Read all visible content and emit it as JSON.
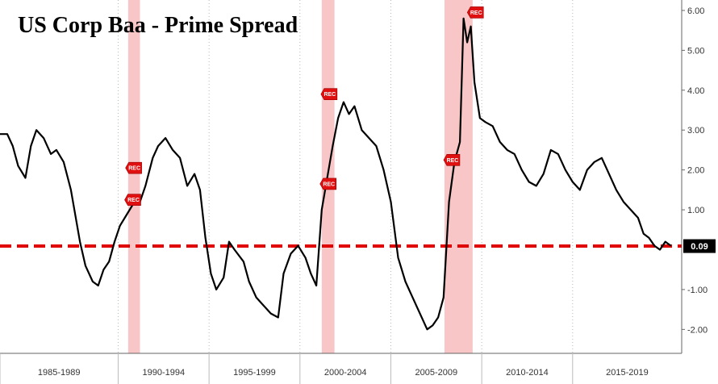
{
  "chart_data": {
    "type": "line",
    "title": "US Corp Baa - Prime Spread",
    "xlabel": "",
    "ylabel": "",
    "xlim": [
      1983.5,
      2021.0
    ],
    "ylim": [
      -2.6,
      6.1
    ],
    "y_ticks": [
      {
        "value": 6,
        "label": "6.00"
      },
      {
        "value": 5,
        "label": "5.00"
      },
      {
        "value": 4,
        "label": "4.00"
      },
      {
        "value": 3,
        "label": "3.00"
      },
      {
        "value": 2,
        "label": "2.00"
      },
      {
        "value": 1,
        "label": "1.00"
      },
      {
        "value": -1,
        "label": "-1.00"
      },
      {
        "value": -2,
        "label": "-2.00"
      }
    ],
    "x_period_labels": [
      {
        "start": 1983.5,
        "end": 1990.0,
        "label": "1985-1989"
      },
      {
        "start": 1990.0,
        "end": 1995.0,
        "label": "1990-1994"
      },
      {
        "start": 1995.0,
        "end": 2000.0,
        "label": "1995-1999"
      },
      {
        "start": 2000.0,
        "end": 2005.0,
        "label": "2000-2004"
      },
      {
        "start": 2005.0,
        "end": 2010.0,
        "label": "2005-2009"
      },
      {
        "start": 2010.0,
        "end": 2015.0,
        "label": "2010-2014"
      },
      {
        "start": 2015.0,
        "end": 2021.0,
        "label": "2015-2019"
      }
    ],
    "recessions": [
      {
        "start": 1990.55,
        "end": 1991.2
      },
      {
        "start": 2001.2,
        "end": 2001.9
      },
      {
        "start": 2007.95,
        "end": 2009.5
      }
    ],
    "rec_markers": [
      {
        "x": 1990.85,
        "y": 2.05,
        "label": "REC"
      },
      {
        "x": 1990.8,
        "y": 1.25,
        "label": "REC"
      },
      {
        "x": 2001.6,
        "y": 3.9,
        "label": "REC"
      },
      {
        "x": 2001.55,
        "y": 1.65,
        "label": "REC"
      },
      {
        "x": 2008.35,
        "y": 2.25,
        "label": "REC"
      },
      {
        "x": 2009.65,
        "y": 5.95,
        "label": "REC"
      }
    ],
    "reference_line": {
      "value": 0.09,
      "label": "0.09",
      "color": "#e00000"
    },
    "series": [
      {
        "name": "",
        "color": "#000000",
        "x": [
          1983.5,
          1983.9,
          1984.2,
          1984.5,
          1984.9,
          1985.2,
          1985.5,
          1985.9,
          1986.3,
          1986.6,
          1987.0,
          1987.4,
          1987.9,
          1988.2,
          1988.6,
          1988.9,
          1989.2,
          1989.5,
          1989.8,
          1990.1,
          1990.5,
          1990.9,
          1991.2,
          1991.5,
          1991.9,
          1992.2,
          1992.6,
          1993.0,
          1993.4,
          1993.8,
          1994.2,
          1994.5,
          1994.8,
          1995.1,
          1995.4,
          1995.8,
          1996.1,
          1996.4,
          1996.9,
          1997.2,
          1997.6,
          1998.0,
          1998.4,
          1998.8,
          1999.1,
          1999.5,
          1999.9,
          2000.3,
          2000.6,
          2000.9,
          2001.2,
          2001.5,
          2001.8,
          2002.1,
          2002.4,
          2002.7,
          2003.0,
          2003.4,
          2003.8,
          2004.2,
          2004.6,
          2005.0,
          2005.4,
          2005.8,
          2006.2,
          2006.6,
          2007.0,
          2007.3,
          2007.6,
          2007.9,
          2008.2,
          2008.5,
          2008.8,
          2009.0,
          2009.2,
          2009.4,
          2009.6,
          2009.9,
          2010.2,
          2010.6,
          2011.0,
          2011.4,
          2011.8,
          2012.2,
          2012.6,
          2013.0,
          2013.4,
          2013.8,
          2014.2,
          2014.6,
          2015.0,
          2015.4,
          2015.8,
          2016.2,
          2016.6,
          2017.0,
          2017.4,
          2017.8,
          2018.2,
          2018.6,
          2018.9,
          2019.2,
          2019.5,
          2019.8,
          2020.1,
          2020.4
        ],
        "values": [
          2.9,
          2.9,
          2.6,
          2.1,
          1.8,
          2.6,
          3.0,
          2.8,
          2.4,
          2.5,
          2.2,
          1.5,
          0.2,
          -0.4,
          -0.8,
          -0.9,
          -0.5,
          -0.3,
          0.2,
          0.6,
          0.9,
          1.2,
          1.2,
          1.6,
          2.3,
          2.6,
          2.8,
          2.5,
          2.3,
          1.6,
          1.9,
          1.5,
          0.3,
          -0.6,
          -1.0,
          -0.7,
          0.2,
          0.0,
          -0.3,
          -0.8,
          -1.2,
          -1.4,
          -1.6,
          -1.7,
          -0.6,
          -0.1,
          0.1,
          -0.2,
          -0.6,
          -0.9,
          1.0,
          1.8,
          2.6,
          3.3,
          3.7,
          3.4,
          3.6,
          3.0,
          2.8,
          2.6,
          2.0,
          1.2,
          -0.2,
          -0.8,
          -1.2,
          -1.6,
          -2.0,
          -1.9,
          -1.7,
          -1.2,
          1.2,
          2.2,
          2.7,
          5.8,
          5.2,
          5.6,
          4.2,
          3.3,
          3.2,
          3.1,
          2.7,
          2.5,
          2.4,
          2.0,
          1.7,
          1.6,
          1.9,
          2.5,
          2.4,
          2.0,
          1.7,
          1.5,
          2.0,
          2.2,
          2.3,
          1.9,
          1.5,
          1.2,
          1.0,
          0.8,
          0.4,
          0.3,
          0.1,
          0.0,
          0.2,
          0.1
        ]
      }
    ],
    "legend": "none",
    "grid": "vertical-dotted"
  }
}
